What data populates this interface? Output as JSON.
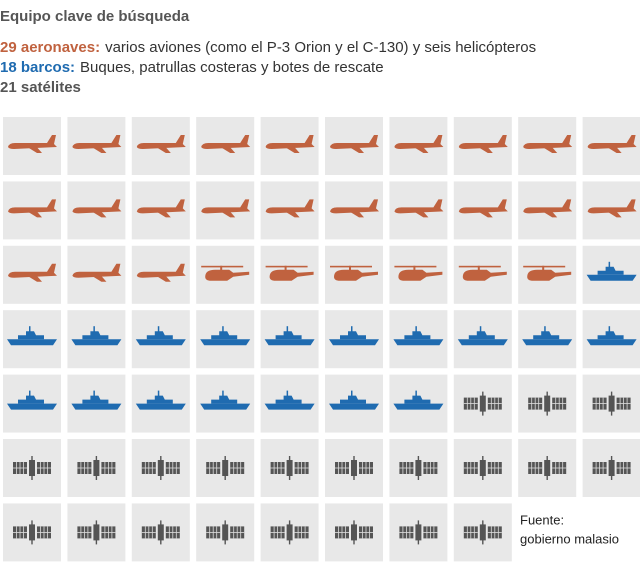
{
  "chart_data": {
    "type": "pictogram",
    "title": "Equipo clave de búsqueda",
    "values": [
      29,
      18,
      21
    ],
    "value_labels": [
      "29 aeronaves:",
      "18 barcos:",
      "21 satélites"
    ],
    "descriptions": [
      "varios aviones (como el P-3 Orion y el C-130) y seis helicópteros",
      "Buques, patrullas costeras y botes de rescate",
      null
    ],
    "colors": [
      "#c0623f",
      "#1f6bb0",
      "#555555"
    ],
    "icons": [
      "plane",
      "ship",
      "satellite"
    ],
    "helicopters": 6,
    "source_label": "Fuente:",
    "source": "gobierno malasio"
  }
}
